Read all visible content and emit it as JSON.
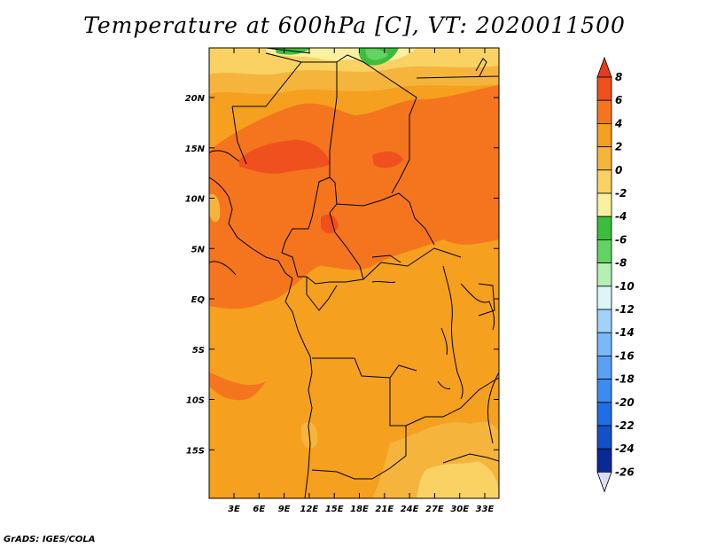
{
  "title": "Temperature at 600hPa [C], VT: 2020011500",
  "credit": "GrADS: IGES/COLA",
  "map": {
    "lat_ticks": [
      "20N",
      "15N",
      "10N",
      "5N",
      "EQ",
      "5S",
      "10S",
      "15S"
    ],
    "lon_ticks": [
      "3E",
      "6E",
      "9E",
      "12E",
      "15E",
      "18E",
      "21E",
      "24E",
      "27E",
      "30E",
      "33E"
    ]
  },
  "colorbar": {
    "labels": [
      "8",
      "6",
      "4",
      "2",
      "0",
      "-2",
      "-4",
      "-6",
      "-8",
      "-10",
      "-12",
      "-14",
      "-16",
      "-18",
      "-20",
      "-22",
      "-24",
      "-26"
    ],
    "colors": {
      "over": "#e43c1c",
      "c6_8": "#f0501e",
      "c4_6": "#f5751e",
      "c2_4": "#f5a01e",
      "c0_2": "#f5b43c",
      "cm2_0": "#fad264",
      "cm4_m2": "#faf0a0",
      "cm6_m4": "#3cbe3c",
      "cm8_m6": "#64d264",
      "cm10_m8": "#b4f0b4",
      "cm12_m10": "#dcf5f5",
      "cm14_m12": "#a0d2fa",
      "cm16_m14": "#78b9fa",
      "cm18_m16": "#5aa0f5",
      "cm20_m18": "#3c8cf0",
      "cm22_m20": "#1e6ee6",
      "cm24_m22": "#1450c8",
      "cm26_m24": "#0a2896",
      "under": "#000064"
    }
  }
}
